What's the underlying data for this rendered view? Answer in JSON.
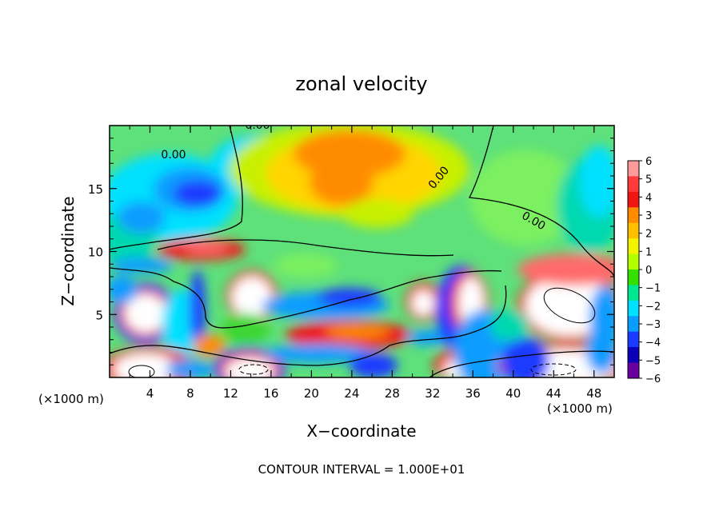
{
  "chart_data": {
    "type": "heatmap",
    "title": "zonal velocity",
    "xlabel": "X−coordinate",
    "ylabel": "Z−coordinate",
    "x_unit_left": "(×1000 m)",
    "x_unit_right": "(×1000 m)",
    "x_ticks": [
      "4",
      "8",
      "12",
      "16",
      "20",
      "24",
      "28",
      "32",
      "36",
      "40",
      "44",
      "48"
    ],
    "y_ticks": [
      "5",
      "10",
      "15"
    ],
    "xlim": [
      0,
      50
    ],
    "ylim": [
      0,
      20
    ],
    "contour_label": "0.00",
    "footer": "CONTOUR INTERVAL = 1.000E+01",
    "colorbar": {
      "ticks": [
        "6",
        "5",
        "4",
        "3",
        "2",
        "1",
        "0",
        "−1",
        "−2",
        "−3",
        "−4",
        "−5",
        "−6"
      ],
      "range": [
        -6,
        6
      ],
      "colors": [
        "#ff9a9a",
        "#ff3a3a",
        "#f01515",
        "#ff8c00",
        "#ffc000",
        "#f4f400",
        "#b4ff00",
        "#34e000",
        "#00e890",
        "#00e0ff",
        "#0a9cff",
        "#1a3aff",
        "#0a00b8",
        "#6b00a0"
      ]
    }
  }
}
